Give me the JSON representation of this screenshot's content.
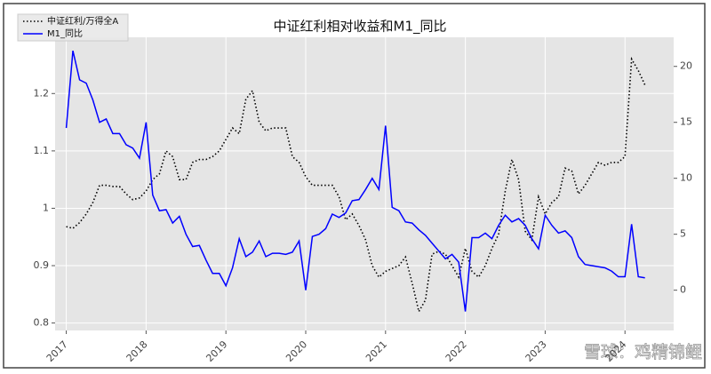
{
  "chart_data": {
    "type": "line",
    "title": "中证红利相对收益和M1_同比",
    "watermark": "雪球：鸡精锦鲤",
    "x": [
      2017.0,
      2017.083,
      2017.167,
      2017.25,
      2017.333,
      2017.417,
      2017.5,
      2017.583,
      2017.667,
      2017.75,
      2017.833,
      2017.917,
      2018.0,
      2018.083,
      2018.167,
      2018.25,
      2018.333,
      2018.417,
      2018.5,
      2018.583,
      2018.667,
      2018.75,
      2018.833,
      2018.917,
      2019.0,
      2019.083,
      2019.167,
      2019.25,
      2019.333,
      2019.417,
      2019.5,
      2019.583,
      2019.667,
      2019.75,
      2019.833,
      2019.917,
      2020.0,
      2020.083,
      2020.167,
      2020.25,
      2020.333,
      2020.417,
      2020.5,
      2020.583,
      2020.667,
      2020.75,
      2020.833,
      2020.917,
      2021.0,
      2021.083,
      2021.167,
      2021.25,
      2021.333,
      2021.417,
      2021.5,
      2021.583,
      2021.667,
      2021.75,
      2021.833,
      2021.917,
      2022.0,
      2022.083,
      2022.167,
      2022.25,
      2022.333,
      2022.417,
      2022.5,
      2022.583,
      2022.667,
      2022.75,
      2022.833,
      2022.917,
      2023.0,
      2023.083,
      2023.167,
      2023.25,
      2023.333,
      2023.417,
      2023.5,
      2023.583,
      2023.667,
      2023.75,
      2023.833,
      2023.917,
      2024.0,
      2024.083,
      2024.167,
      2024.25
    ],
    "series": [
      {
        "name": "中证红利/万得全A",
        "color": "#000000",
        "dash": "dotted",
        "values": [
          0.968,
          0.965,
          0.975,
          0.99,
          1.01,
          1.04,
          1.04,
          1.038,
          1.038,
          1.025,
          1.015,
          1.018,
          1.03,
          1.05,
          1.06,
          1.1,
          1.09,
          1.05,
          1.05,
          1.08,
          1.085,
          1.085,
          1.09,
          1.1,
          1.12,
          1.14,
          1.13,
          1.19,
          1.205,
          1.15,
          1.135,
          1.14,
          1.14,
          1.14,
          1.09,
          1.08,
          1.055,
          1.04,
          1.04,
          1.04,
          1.04,
          1.02,
          0.98,
          0.99,
          0.97,
          0.945,
          0.9,
          0.88,
          0.89,
          0.895,
          0.9,
          0.915,
          0.87,
          0.82,
          0.84,
          0.92,
          0.925,
          0.92,
          0.9,
          0.88,
          0.93,
          0.89,
          0.88,
          0.9,
          0.93,
          0.955,
          1.03,
          1.085,
          1.05,
          0.96,
          0.945,
          1.02,
          0.99,
          1.01,
          1.02,
          1.07,
          1.065,
          1.025,
          1.04,
          1.06,
          1.08,
          1.075,
          1.08,
          1.08,
          1.09,
          1.26,
          1.24,
          1.215
        ]
      },
      {
        "name": "M1_同比",
        "color": "#0000ff",
        "axis": "y2",
        "values": [
          14.5,
          21.4,
          18.8,
          18.5,
          17,
          15,
          15.3,
          14,
          14,
          13,
          12.7,
          11.8,
          15,
          8.5,
          7.1,
          7.2,
          6,
          6.6,
          5,
          3.9,
          4,
          2.7,
          1.5,
          1.5,
          0.4,
          2,
          4.6,
          3,
          3.4,
          4.4,
          3,
          3.3,
          3.3,
          3.2,
          3.4,
          4.4,
          0,
          4.8,
          5,
          5.5,
          6.8,
          6.5,
          6.9,
          8,
          8.1,
          9,
          10,
          9,
          14.7,
          7.4,
          7.1,
          6.1,
          6,
          5.4,
          4.9,
          4.2,
          3.5,
          2.8,
          3.2,
          2.5,
          -1.9,
          4.7,
          4.7,
          5.1,
          4.6,
          5.8,
          6.7,
          6.1,
          6.4,
          5.8,
          4.6,
          3.7,
          6.7,
          5.8,
          5.1,
          5.3,
          4.7,
          3,
          2.3,
          2.2,
          2.1,
          2,
          1.7,
          1.2,
          1.2,
          5.9,
          1.2,
          1.1
        ]
      }
    ],
    "xlim": [
      2016.86,
      2024.61
    ],
    "xticks": [
      2017,
      2018,
      2019,
      2020,
      2021,
      2022,
      2023,
      2024
    ],
    "ylim": [
      0.787,
      1.298
    ],
    "yticks": [
      0.8,
      0.9,
      1.0,
      1.1,
      1.2
    ],
    "y2lim": [
      -3.6,
      22.6
    ],
    "y2ticks": [
      0,
      5,
      10,
      15,
      20
    ],
    "grid": true,
    "legend": "upper left"
  }
}
